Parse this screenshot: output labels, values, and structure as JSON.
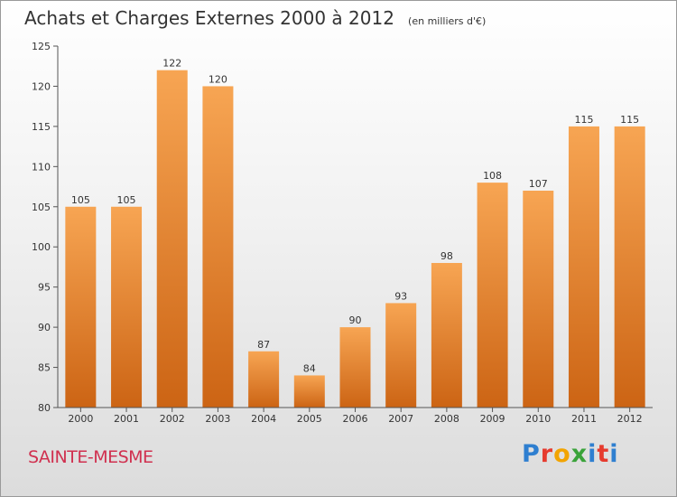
{
  "colors": {
    "bar_light": "#f7a553",
    "bar_dark": "#cc6414",
    "place": "#d0304f",
    "brand": [
      "#2f7fd0",
      "#e63b2e",
      "#f2a400",
      "#3aa33a",
      "#2f7fd0",
      "#e63b2e"
    ]
  },
  "place_name": "SAINTE-MESME",
  "brand_text": "Proxiti",
  "chart_data": {
    "type": "bar",
    "title": "Achats et Charges Externes 2000 à 2012",
    "unit_note": "(en milliers d'€)",
    "xlabel": "",
    "ylabel": "",
    "categories": [
      "2000",
      "2001",
      "2002",
      "2003",
      "2004",
      "2005",
      "2006",
      "2007",
      "2008",
      "2009",
      "2010",
      "2011",
      "2012"
    ],
    "values": [
      105,
      105,
      122,
      120,
      87,
      84,
      90,
      93,
      98,
      108,
      107,
      115,
      115
    ],
    "ylim": [
      80,
      125
    ],
    "yticks": [
      80,
      85,
      90,
      95,
      100,
      105,
      110,
      115,
      120,
      125
    ],
    "grid": false,
    "legend": "none",
    "data_labels": true
  }
}
